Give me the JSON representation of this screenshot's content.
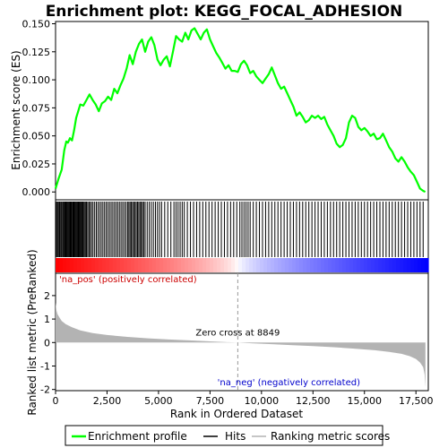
{
  "chart_data": {
    "type": "line",
    "title": "Enrichment plot: KEGG_FOCAL_ADHESION",
    "es_panel": {
      "ylabel": "Enrichment score (ES)",
      "ylim": [
        -0.007,
        0.152
      ],
      "yticks": [
        0.0,
        0.025,
        0.05,
        0.075,
        0.1,
        0.125,
        0.15
      ],
      "ytick_labels": [
        "0.000",
        "0.025",
        "0.050",
        "0.075",
        "0.100",
        "0.125",
        "0.150"
      ],
      "series_name": "Enrichment profile",
      "line_color": "#00ff00",
      "x": [
        0,
        150,
        300,
        420,
        520,
        600,
        700,
        800,
        900,
        1000,
        1100,
        1200,
        1350,
        1500,
        1650,
        1800,
        1950,
        2100,
        2250,
        2400,
        2550,
        2700,
        2850,
        3000,
        3150,
        3300,
        3450,
        3600,
        3750,
        3900,
        4050,
        4200,
        4350,
        4500,
        4650,
        4800,
        4950,
        5100,
        5250,
        5400,
        5550,
        5700,
        5850,
        6000,
        6150,
        6300,
        6450,
        6600,
        6750,
        6900,
        7050,
        7200,
        7350,
        7500,
        7650,
        7800,
        7950,
        8100,
        8250,
        8400,
        8550,
        8700,
        8850,
        9000,
        9150,
        9300,
        9450,
        9600,
        9750,
        9900,
        10050,
        10200,
        10350,
        10500,
        10650,
        10800,
        10950,
        11100,
        11250,
        11400,
        11550,
        11700,
        11850,
        12000,
        12150,
        12300,
        12450,
        12600,
        12750,
        12900,
        13050,
        13200,
        13350,
        13500,
        13650,
        13800,
        13950,
        14100,
        14250,
        14400,
        14550,
        14700,
        14850,
        15000,
        15150,
        15300,
        15450,
        15600,
        15750,
        15900,
        16050,
        16200,
        16350,
        16500,
        16650,
        16800,
        16950,
        17100,
        17250,
        17400,
        17550,
        17700,
        17850,
        17950
      ],
      "y": [
        0.003,
        0.012,
        0.02,
        0.037,
        0.045,
        0.044,
        0.048,
        0.046,
        0.055,
        0.066,
        0.072,
        0.078,
        0.077,
        0.082,
        0.087,
        0.082,
        0.078,
        0.072,
        0.079,
        0.081,
        0.085,
        0.082,
        0.092,
        0.088,
        0.095,
        0.101,
        0.11,
        0.122,
        0.114,
        0.125,
        0.132,
        0.136,
        0.125,
        0.134,
        0.138,
        0.131,
        0.118,
        0.113,
        0.118,
        0.121,
        0.112,
        0.125,
        0.139,
        0.136,
        0.134,
        0.142,
        0.136,
        0.144,
        0.146,
        0.141,
        0.136,
        0.142,
        0.145,
        0.136,
        0.13,
        0.124,
        0.12,
        0.115,
        0.11,
        0.113,
        0.108,
        0.108,
        0.107,
        0.114,
        0.117,
        0.113,
        0.106,
        0.108,
        0.103,
        0.1,
        0.097,
        0.101,
        0.105,
        0.111,
        0.104,
        0.097,
        0.092,
        0.094,
        0.088,
        0.082,
        0.076,
        0.068,
        0.071,
        0.067,
        0.062,
        0.064,
        0.068,
        0.066,
        0.068,
        0.065,
        0.067,
        0.06,
        0.055,
        0.05,
        0.043,
        0.04,
        0.042,
        0.048,
        0.062,
        0.068,
        0.066,
        0.058,
        0.055,
        0.057,
        0.054,
        0.05,
        0.052,
        0.047,
        0.048,
        0.052,
        0.046,
        0.04,
        0.036,
        0.03,
        0.027,
        0.031,
        0.027,
        0.022,
        0.018,
        0.015,
        0.009,
        0.003,
        0.001,
        0.0
      ]
    },
    "hits_panel": {
      "series_name": "Hits",
      "hits": [
        30,
        80,
        120,
        170,
        200,
        250,
        290,
        340,
        380,
        420,
        460,
        500,
        540,
        580,
        620,
        660,
        700,
        740,
        780,
        830,
        870,
        910,
        950,
        990,
        1030,
        1070,
        1110,
        1150,
        1190,
        1230,
        1270,
        1310,
        1350,
        1400,
        1450,
        1500,
        1560,
        1620,
        1680,
        1750,
        1820,
        1900,
        1980,
        2060,
        2140,
        2220,
        2300,
        2380,
        2460,
        2540,
        2620,
        2700,
        2780,
        2860,
        2940,
        3020,
        3100,
        3180,
        3260,
        3340,
        3420,
        3500,
        3560,
        3620,
        3680,
        3740,
        3800,
        3860,
        3920,
        3980,
        4040,
        4100,
        4160,
        4220,
        4280,
        4350,
        4450,
        4550,
        4650,
        4750,
        4850,
        4950,
        5050,
        5150,
        5300,
        5450,
        5600,
        5750,
        5850,
        5950,
        6050,
        6150,
        6250,
        6400,
        6550,
        6700,
        6850,
        7000,
        7150,
        7300,
        7450,
        7600,
        7750,
        7900,
        8050,
        8200,
        8350,
        8500,
        8650,
        8800,
        8950,
        9050,
        9150,
        9250,
        9350,
        9450,
        9600,
        9750,
        9900,
        10050,
        10200,
        10350,
        10500,
        10650,
        10800,
        10950,
        11100,
        11250,
        11400,
        11550,
        11700,
        11850,
        12000,
        12150,
        12300,
        12450,
        12600,
        12750,
        12900,
        13050,
        13200,
        13350,
        13500,
        13650,
        13800,
        13950,
        14100,
        14250,
        14400,
        14550,
        14700,
        14850,
        15000,
        15150,
        15300,
        15450,
        15600,
        15750,
        15900,
        16050,
        16200,
        16350,
        16500,
        16650,
        16800,
        16950,
        17100,
        17250,
        17400,
        17550,
        17700,
        17850
      ],
      "gradient_positive_color": "#ff0000",
      "gradient_negative_color": "#0000ff"
    },
    "rank_panel": {
      "xlabel": "Rank in Ordered Dataset",
      "ylabel": "Ranked list metric (PreRanked)",
      "xlim": [
        0,
        18100
      ],
      "ylim": [
        -2.05,
        2.95
      ],
      "xticks": [
        0,
        2500,
        5000,
        7500,
        10000,
        12500,
        15000,
        17500
      ],
      "xtick_labels": [
        "0",
        "2,500",
        "5,000",
        "7,500",
        "10,000",
        "12,500",
        "15,000",
        "17,500"
      ],
      "yticks": [
        -2,
        -1,
        0,
        1,
        2
      ],
      "ytick_labels": [
        "-2",
        "-1",
        "0",
        "1",
        "2"
      ],
      "series_name": "Ranking metric scores",
      "fill_color": "#b3b3b3",
      "metric_x": [
        0,
        50,
        100,
        200,
        300,
        500,
        800,
        1200,
        1800,
        2500,
        3500,
        4500,
        5500,
        6500,
        7500,
        8200,
        8849,
        9500,
        10500,
        11500,
        12500,
        13500,
        14500,
        15500,
        16200,
        16800,
        17200,
        17500,
        17700,
        17850,
        17920,
        17960
      ],
      "metric_y": [
        1.7,
        1.35,
        1.2,
        1.05,
        0.92,
        0.78,
        0.65,
        0.52,
        0.4,
        0.32,
        0.24,
        0.18,
        0.13,
        0.09,
        0.05,
        0.02,
        0.0,
        -0.03,
        -0.07,
        -0.11,
        -0.15,
        -0.2,
        -0.26,
        -0.33,
        -0.4,
        -0.48,
        -0.58,
        -0.7,
        -0.85,
        -1.05,
        -1.35,
        -1.9
      ],
      "zero_cross_label": "Zero cross at 8849",
      "zero_cross_x": 8849,
      "pos_label": "'na_pos' (positively correlated)",
      "neg_label": "'na_neg' (negatively correlated)",
      "pos_color": "#cc0000",
      "neg_color": "#0000cc"
    },
    "legend": {
      "placement": "bottom",
      "entries": [
        "Enrichment profile",
        "Hits",
        "Ranking metric scores"
      ]
    }
  }
}
